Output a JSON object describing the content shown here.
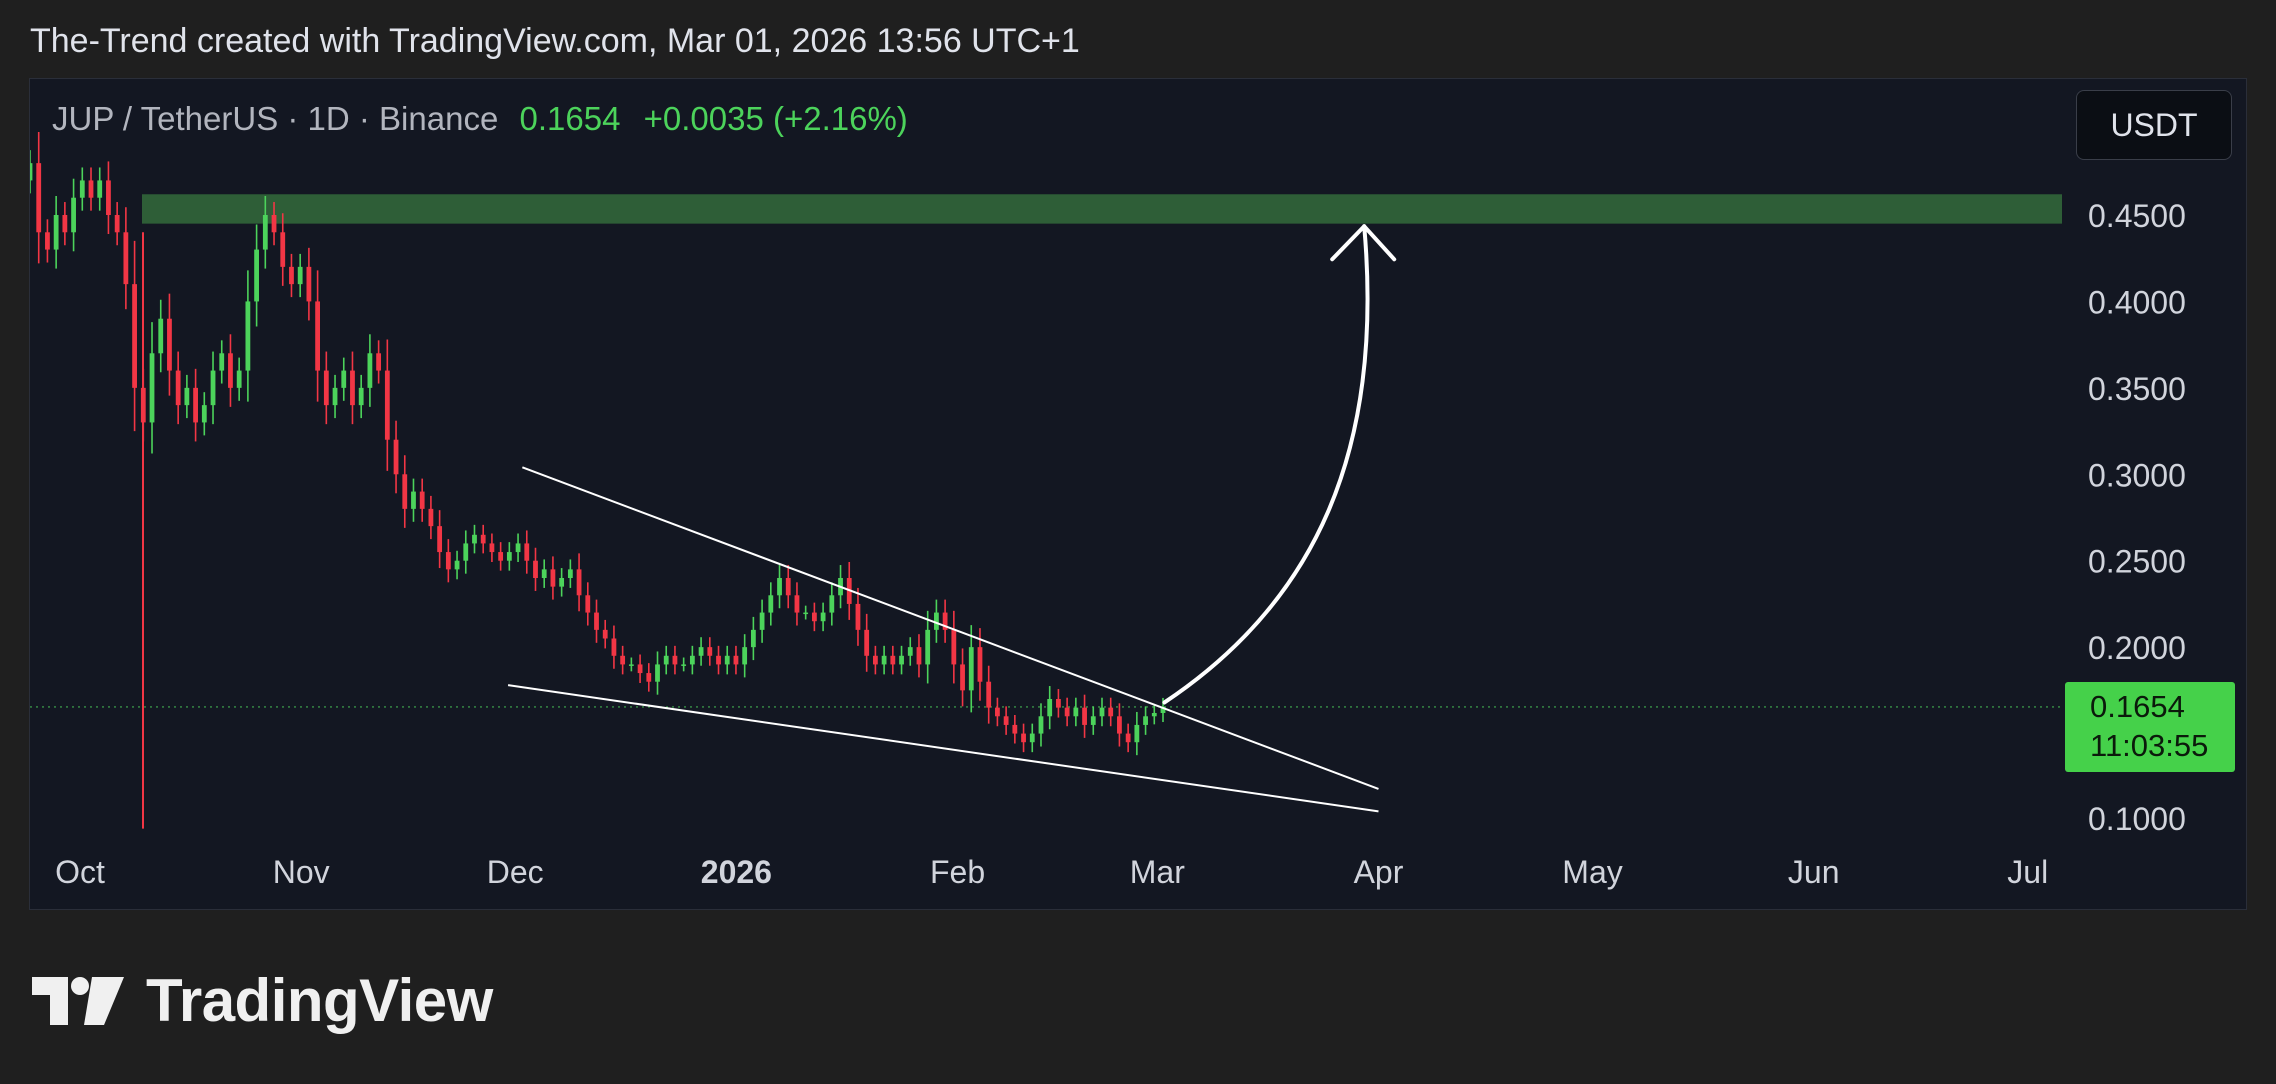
{
  "header": {
    "caption": "The-Trend created with TradingView.com, Mar 01, 2026 13:56 UTC+1"
  },
  "symbol": {
    "label": "JUP / TetherUS · 1D · Binance",
    "last_price": "0.1654",
    "change": "+0.0035 (+2.16%)"
  },
  "currency_button": "USDT",
  "price_badge": {
    "price": "0.1654",
    "countdown": "11:03:55"
  },
  "footer": {
    "brand": "TradingView"
  },
  "colors": {
    "up": "#4cd35b",
    "down": "#f23645",
    "resistance_zone": "#2e5e37",
    "badge": "#45d14a",
    "background": "#131722"
  },
  "chart_data": {
    "type": "candlestick",
    "title": "",
    "xlabel": "",
    "ylabel": "",
    "ylim": [
      0.095,
      0.5
    ],
    "y_ticks": [
      "0.4500",
      "0.4000",
      "0.3500",
      "0.3000",
      "0.2500",
      "0.2000",
      "0.1000"
    ],
    "x_ticks": [
      {
        "label": "Oct",
        "date": "2025-10-01"
      },
      {
        "label": "Nov",
        "date": "2025-11-01"
      },
      {
        "label": "Dec",
        "date": "2025-12-01"
      },
      {
        "label": "2026",
        "date": "2026-01-01",
        "bold": true
      },
      {
        "label": "Feb",
        "date": "2026-02-01"
      },
      {
        "label": "Mar",
        "date": "2026-03-01"
      },
      {
        "label": "Apr",
        "date": "2026-04-01"
      },
      {
        "label": "May",
        "date": "2026-05-01"
      },
      {
        "label": "Jun",
        "date": "2026-06-01"
      },
      {
        "label": "Jul",
        "date": "2026-07-01"
      }
    ],
    "x_range": [
      "2025-10-01",
      "2026-07-03"
    ],
    "series": [
      {
        "daily_close_estimates": [
          0.48,
          0.44,
          0.43,
          0.45,
          0.44,
          0.46,
          0.47,
          0.46,
          0.47,
          0.45,
          0.44,
          0.41,
          0.35,
          0.33,
          0.37,
          0.39,
          0.36,
          0.34,
          0.35,
          0.33,
          0.34,
          0.36,
          0.37,
          0.35,
          0.36,
          0.4,
          0.43,
          0.45,
          0.44,
          0.42,
          0.41,
          0.42,
          0.4,
          0.36,
          0.34,
          0.35,
          0.36,
          0.34,
          0.35,
          0.37,
          0.36,
          0.32,
          0.3,
          0.28,
          0.29,
          0.28,
          0.27,
          0.255,
          0.245,
          0.25,
          0.26,
          0.265,
          0.26,
          0.255,
          0.25,
          0.255,
          0.26,
          0.25,
          0.24,
          0.245,
          0.235,
          0.24,
          0.245,
          0.23,
          0.22,
          0.21,
          0.205,
          0.195,
          0.19,
          0.19,
          0.185,
          0.18,
          0.19,
          0.195,
          0.19,
          0.19,
          0.195,
          0.2,
          0.195,
          0.19,
          0.195,
          0.19,
          0.2,
          0.21,
          0.22,
          0.23,
          0.24,
          0.23,
          0.22,
          0.22,
          0.215,
          0.22,
          0.23,
          0.24,
          0.225,
          0.21,
          0.195,
          0.19,
          0.195,
          0.19,
          0.195,
          0.2,
          0.19,
          0.21,
          0.22,
          0.21,
          0.19,
          0.175,
          0.2,
          0.18,
          0.165,
          0.16,
          0.155,
          0.15,
          0.145,
          0.15,
          0.16,
          0.17,
          0.165,
          0.16,
          0.165,
          0.155,
          0.16,
          0.165,
          0.16,
          0.15,
          0.145,
          0.155,
          0.16,
          0.1619,
          0.1654
        ],
        "last_close": 0.1654
      }
    ],
    "annotations": {
      "resistance_zone": [
        0.445,
        0.462
      ],
      "upper_trendline": [
        {
          "date": "2025-12-02",
          "price": 0.304
        },
        {
          "date": "2026-04-01",
          "price": 0.118
        }
      ],
      "lower_trendline": [
        {
          "date": "2025-11-30",
          "price": 0.178
        },
        {
          "date": "2026-04-01",
          "price": 0.105
        }
      ],
      "projection_arrow": {
        "from": {
          "date": "2026-03-02",
          "price": 0.168
        },
        "to": {
          "date": "2026-03-30",
          "price": 0.44
        }
      },
      "current_price_line": 0.1654
    }
  }
}
